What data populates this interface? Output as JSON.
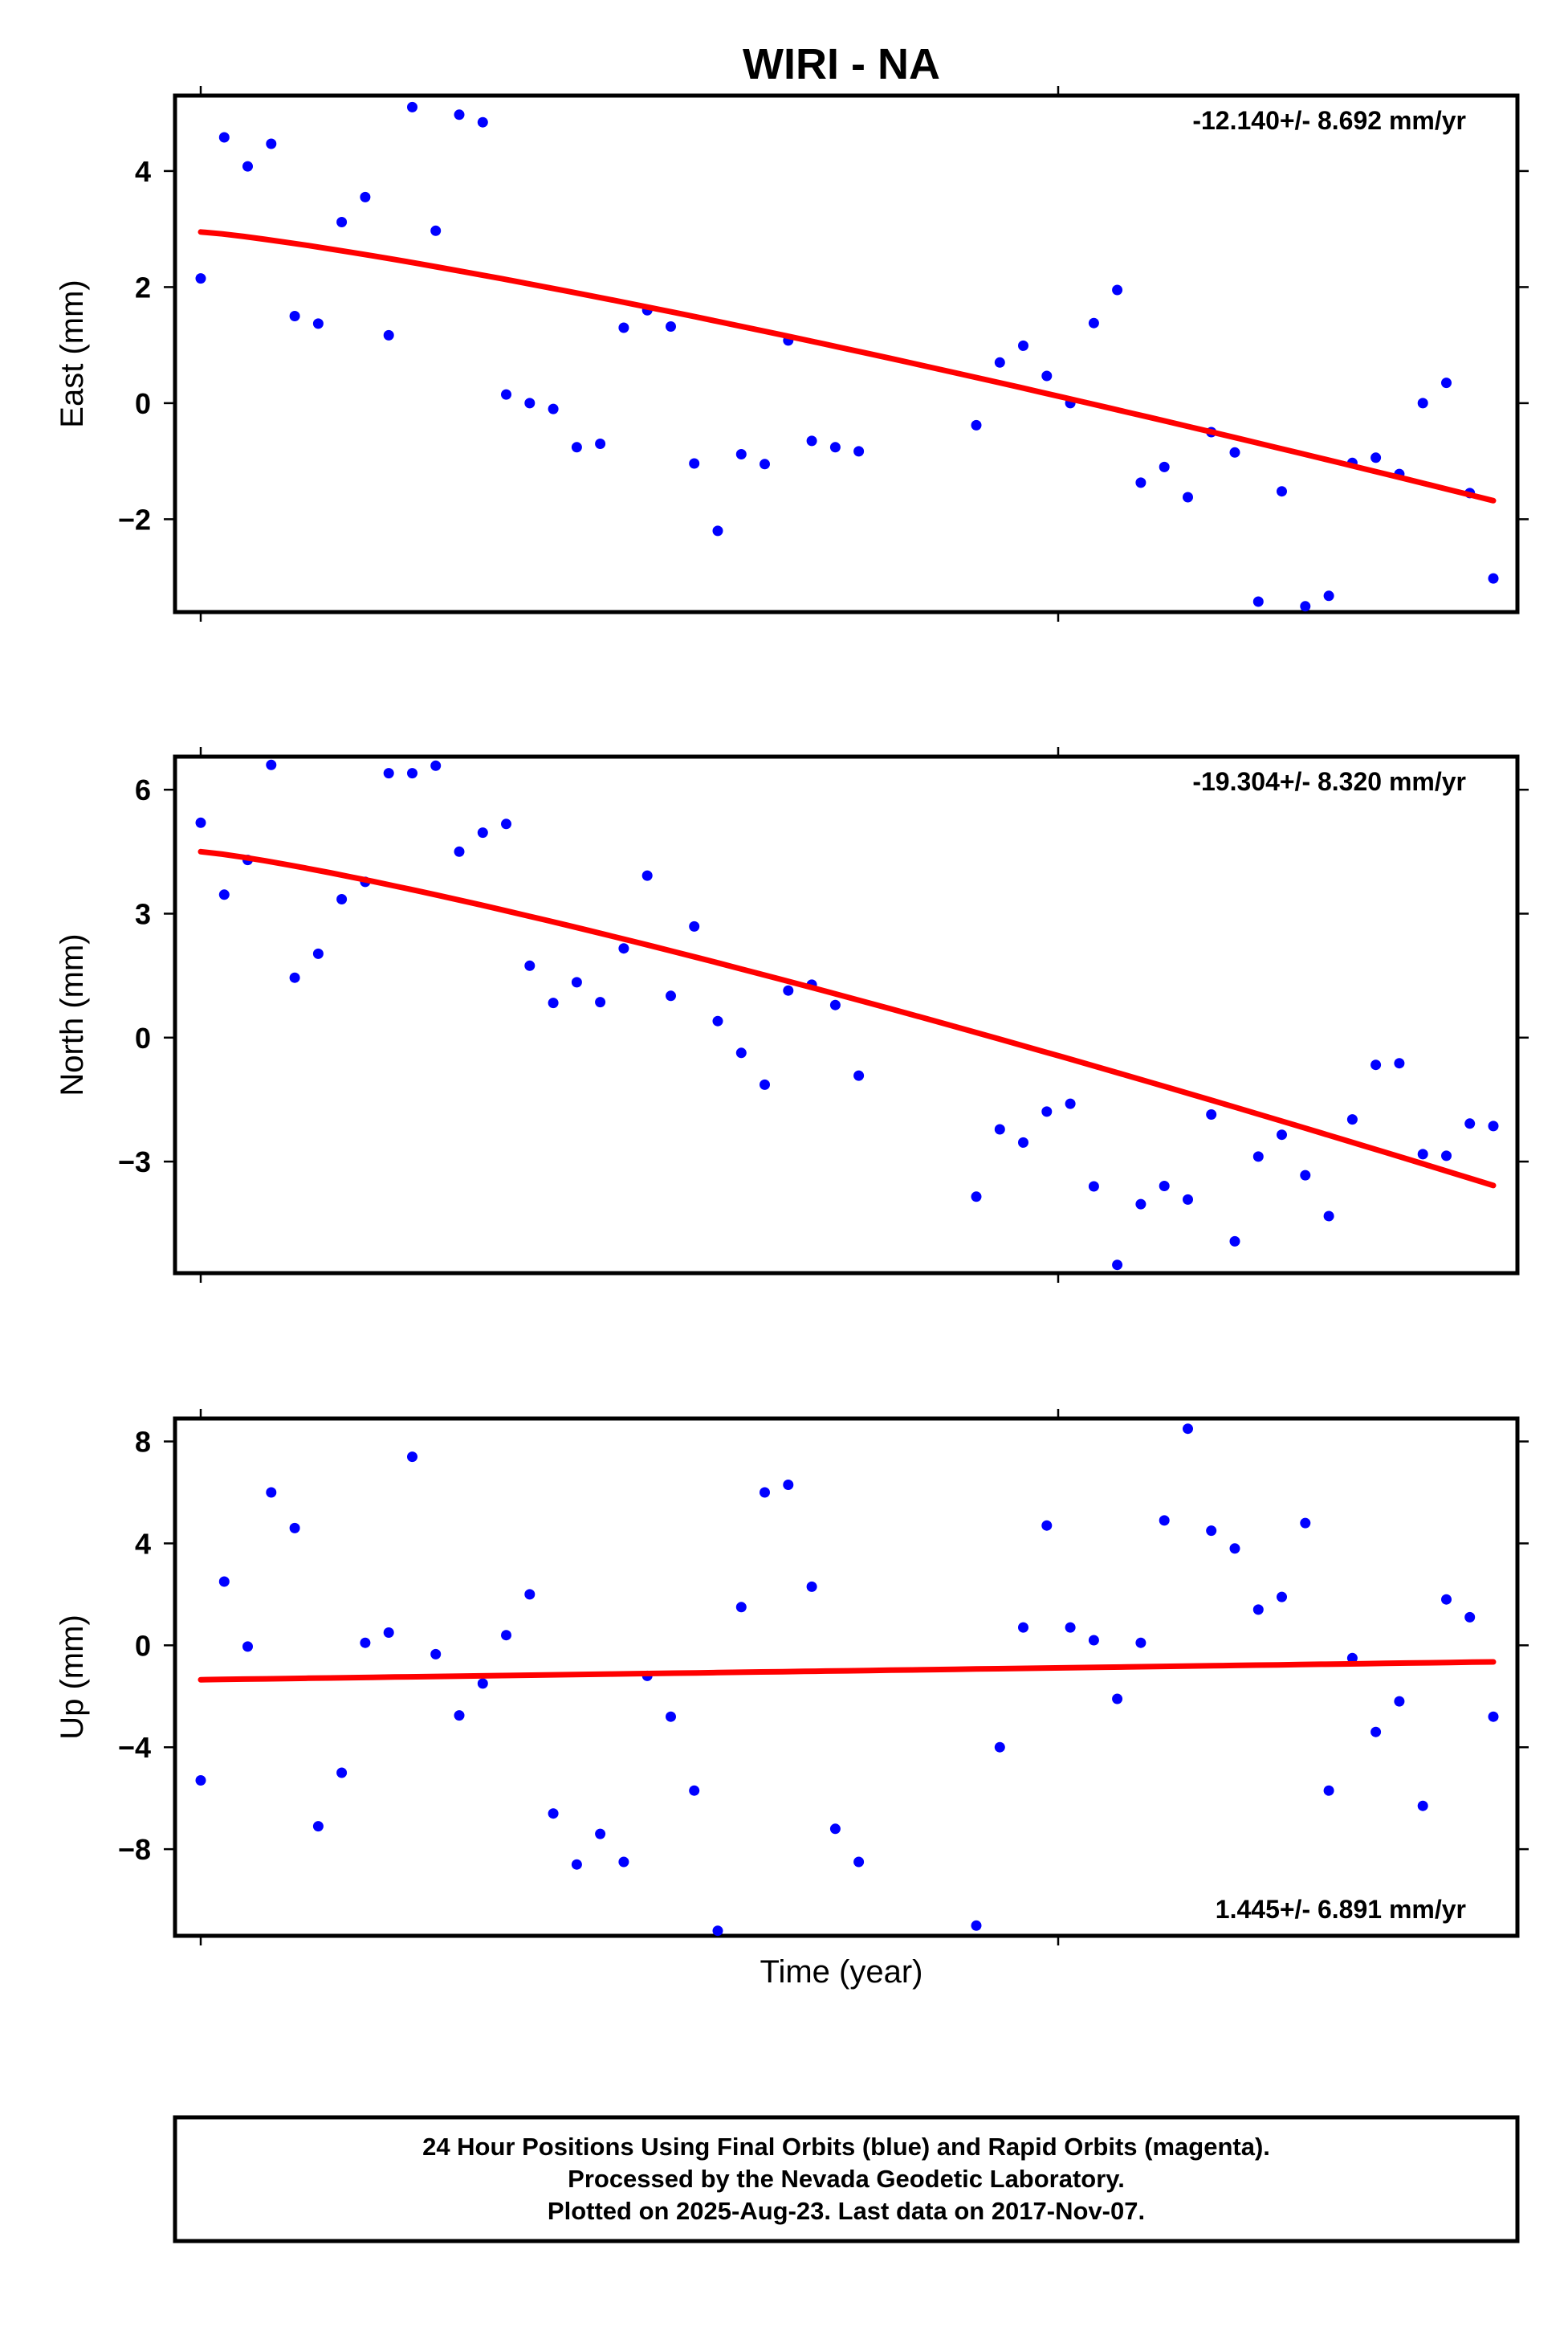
{
  "title": "WIRI - NA",
  "xlabel": "Time (year)",
  "footer": {
    "lines": [
      "24 Hour Positions Using Final Orbits (blue) and Rapid Orbits (magenta).",
      "Processed by the Nevada Geodetic Laboratory.",
      "Plotted on 2025-Aug-23. Last data on 2017-Nov-07."
    ]
  },
  "colors": {
    "points": "#0000ff",
    "trend": "#ff0000"
  },
  "chart_data": [
    {
      "type": "scatter",
      "ylabel": "East (mm)",
      "rate_label": "-12.140+/- 8.692 mm/yr",
      "rate_position": "top-right",
      "ylim": [
        -3.6,
        5.3
      ],
      "yticks": [
        -2,
        0,
        2,
        4
      ],
      "ytick_labels": [
        "−2",
        "0",
        "2",
        "4"
      ],
      "x_points": 56,
      "y": [
        2.15,
        4.58,
        4.08,
        4.47,
        1.5,
        1.37,
        3.12,
        3.55,
        1.17,
        5.1,
        2.97,
        4.97,
        4.84,
        0.15,
        0,
        -0.1,
        -0.76,
        -0.7,
        1.3,
        1.6,
        1.32,
        -1.04,
        -2.2,
        -0.88,
        -1.05,
        1.08,
        -0.65,
        -0.76,
        -0.83,
        null,
        null,
        null,
        null,
        -0.38,
        0.7,
        0.99,
        0.47,
        0,
        1.38,
        1.95,
        -1.37,
        -1.1,
        -1.62,
        -0.5,
        -0.85,
        -3.42,
        -1.52,
        -3.5,
        -3.32,
        -1.03,
        -0.94,
        -1.22,
        0,
        0.35,
        -1.55,
        -3.02
      ],
      "trend": {
        "start": 2.95,
        "end": -1.68,
        "curvature": 1.2
      }
    },
    {
      "type": "scatter",
      "ylabel": "North (mm)",
      "rate_label": "-19.304+/- 8.320 mm/yr",
      "rate_position": "top-right",
      "ylim": [
        -5.7,
        6.8
      ],
      "yticks": [
        -3,
        0,
        3,
        6
      ],
      "ytick_labels": [
        "−3",
        "0",
        "3",
        "6"
      ],
      "x_points": 56,
      "y": [
        5.2,
        3.46,
        4.3,
        6.6,
        1.45,
        2.03,
        3.35,
        3.77,
        6.4,
        6.4,
        6.58,
        4.5,
        4.96,
        5.17,
        1.74,
        0.84,
        1.34,
        0.86,
        2.16,
        3.92,
        1.01,
        2.69,
        0.4,
        -0.37,
        -1.14,
        1.14,
        1.28,
        0.79,
        -0.92,
        null,
        null,
        null,
        null,
        -3.85,
        -2.22,
        -2.54,
        -1.79,
        -1.6,
        -3.6,
        -5.5,
        -4.03,
        -3.59,
        -3.92,
        -1.86,
        -4.93,
        -2.88,
        -2.35,
        -3.33,
        -4.32,
        -1.98,
        -0.66,
        -0.62,
        -2.82,
        -2.86,
        -2.08,
        -2.14
      ],
      "trend": {
        "start": 4.5,
        "end": -3.58,
        "curvature": 1.2
      }
    },
    {
      "type": "scatter",
      "ylabel": "Up (mm)",
      "rate_label": "1.445+/- 6.891 mm/yr",
      "rate_position": "bottom-right",
      "ylim": [
        -11.4,
        8.9
      ],
      "yticks": [
        -8,
        -4,
        0,
        4,
        8
      ],
      "ytick_labels": [
        "−8",
        "−4",
        "0",
        "4",
        "8"
      ],
      "x_points": 56,
      "y": [
        -5.3,
        2.5,
        -0.05,
        6,
        4.6,
        -7.1,
        -5,
        0.1,
        0.5,
        7.4,
        -0.35,
        -2.75,
        -1.5,
        0.4,
        2,
        -6.6,
        -8.6,
        -7.4,
        -8.5,
        -1.2,
        -2.8,
        -5.7,
        -11.2,
        1.5,
        6,
        6.3,
        2.3,
        -7.2,
        -8.5,
        null,
        null,
        null,
        null,
        -11,
        -4,
        0.7,
        4.7,
        0.7,
        0.2,
        -2.1,
        0.1,
        4.9,
        8.5,
        4.5,
        3.8,
        1.4,
        1.9,
        4.8,
        -5.7,
        -0.5,
        -3.4,
        -2.2,
        -6.3,
        1.8,
        1.1,
        -2.8
      ],
      "trend": {
        "start": -1.35,
        "end": -0.65,
        "curvature": 1.0
      }
    }
  ]
}
